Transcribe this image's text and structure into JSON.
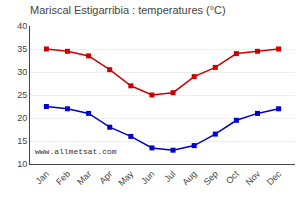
{
  "chart_data": {
    "type": "line",
    "title": "Mariscal Estigarribia : temperatures (°C)",
    "categories": [
      "Jan",
      "Feb",
      "Mar",
      "Apr",
      "May",
      "Jun",
      "Jul",
      "Aug",
      "Sep",
      "Oct",
      "Nov",
      "Dec"
    ],
    "series": [
      {
        "color": "#cc0000",
        "marker": "square",
        "values": [
          35,
          34.5,
          33.5,
          30.5,
          27,
          25,
          25.5,
          29,
          31,
          34,
          34.5,
          35
        ]
      },
      {
        "color": "#0000cc",
        "marker": "square",
        "values": [
          22.5,
          22,
          21,
          18,
          16,
          13.5,
          13,
          14,
          16.5,
          19.5,
          21,
          22
        ]
      }
    ],
    "ylim": [
      10,
      40
    ],
    "yticks": [
      10,
      15,
      20,
      25,
      30,
      35,
      40
    ],
    "grid": "y",
    "annotations": [
      "www.allmetsat.com"
    ]
  }
}
